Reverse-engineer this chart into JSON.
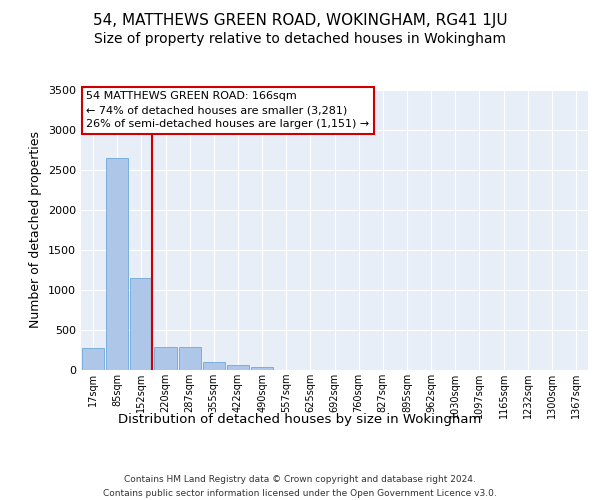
{
  "title1": "54, MATTHEWS GREEN ROAD, WOKINGHAM, RG41 1JU",
  "title2": "Size of property relative to detached houses in Wokingham",
  "xlabel": "Distribution of detached houses by size in Wokingham",
  "ylabel": "Number of detached properties",
  "footer1": "Contains HM Land Registry data © Crown copyright and database right 2024.",
  "footer2": "Contains public sector information licensed under the Open Government Licence v3.0.",
  "bin_labels": [
    "17sqm",
    "85sqm",
    "152sqm",
    "220sqm",
    "287sqm",
    "355sqm",
    "422sqm",
    "490sqm",
    "557sqm",
    "625sqm",
    "692sqm",
    "760sqm",
    "827sqm",
    "895sqm",
    "962sqm",
    "1030sqm",
    "1097sqm",
    "1165sqm",
    "1232sqm",
    "1300sqm",
    "1367sqm"
  ],
  "bar_values": [
    275,
    2650,
    1150,
    290,
    290,
    100,
    60,
    40,
    0,
    0,
    0,
    0,
    0,
    0,
    0,
    0,
    0,
    0,
    0,
    0,
    0
  ],
  "bar_color": "#aec6e8",
  "bar_edge_color": "#5a9fd4",
  "vline_x": 2.45,
  "vline_color": "#cc0000",
  "annotation_line1": "54 MATTHEWS GREEN ROAD: 166sqm",
  "annotation_line2": "← 74% of detached houses are smaller (3,281)",
  "annotation_line3": "26% of semi-detached houses are larger (1,151) →",
  "annotation_box_color": "#ffffff",
  "annotation_box_edge_color": "#cc0000",
  "annotation_fontsize": 8.0,
  "ylim": [
    0,
    3500
  ],
  "yticks": [
    0,
    500,
    1000,
    1500,
    2000,
    2500,
    3000,
    3500
  ],
  "bg_color": "#e8eef7",
  "grid_color": "#ffffff",
  "title1_fontsize": 11,
  "title2_fontsize": 10
}
